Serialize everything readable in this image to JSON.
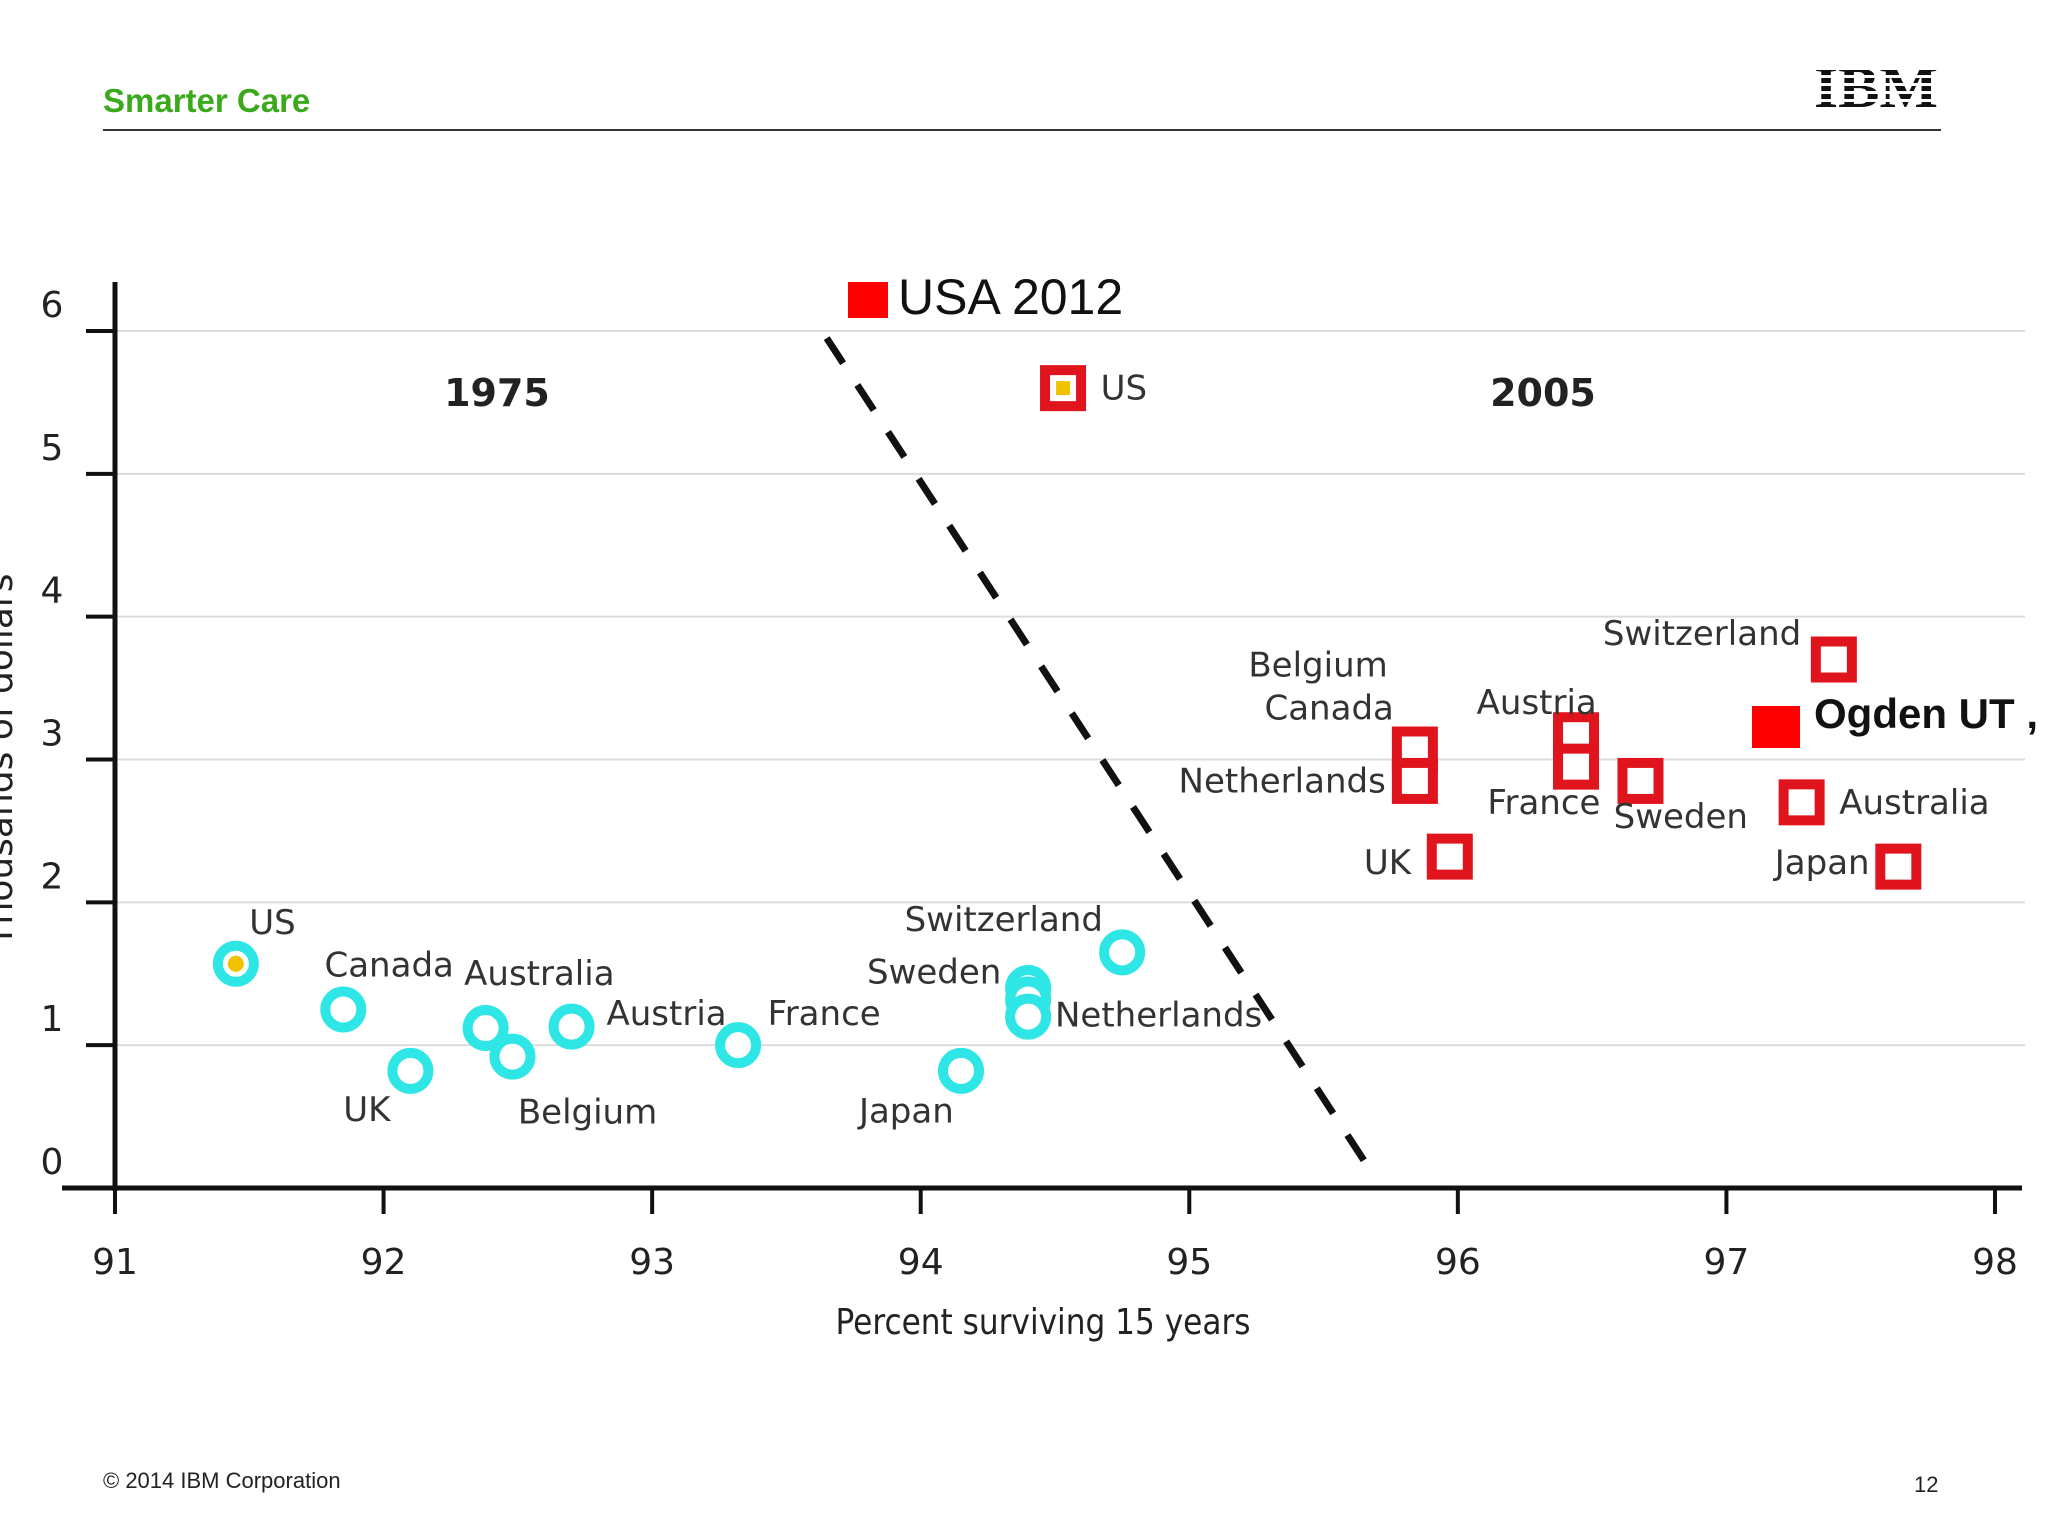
{
  "header": {
    "title": "Smarter Care",
    "logo_text": "IBM"
  },
  "footer": {
    "copyright": "© 2014 IBM Corporation",
    "page_number": "12"
  },
  "chart_data": {
    "type": "scatter",
    "title": "",
    "xlabel": "Percent surviving 15 years",
    "ylabel": "Thousands of dollars",
    "xlim": [
      91,
      98
    ],
    "ylim": [
      0,
      6
    ],
    "x_ticks": [
      "91",
      "92",
      "93",
      "94",
      "95",
      "96",
      "97",
      "98"
    ],
    "y_ticks": [
      "0",
      "1",
      "2",
      "3",
      "4",
      "5",
      "6"
    ],
    "grid": true,
    "era_labels": {
      "left": "1975",
      "right": "2005"
    },
    "colors": {
      "series_1975": "#2ee6e6",
      "series_2005": "#e0141c",
      "annotation": "#ff0000",
      "us_center": "#f2c200"
    },
    "series": [
      {
        "name": "1975",
        "marker": "ring",
        "points": [
          {
            "label": "US",
            "x": 91.45,
            "y": 1.57
          },
          {
            "label": "Canada",
            "x": 91.85,
            "y": 1.25
          },
          {
            "label": "UK",
            "x": 92.1,
            "y": 0.82
          },
          {
            "label": "",
            "x": 92.38,
            "y": 1.12
          },
          {
            "label": "Australia",
            "x": 92.48,
            "y": 0.92
          },
          {
            "label": "Belgium",
            "x": 92.7,
            "y": 1.13
          },
          {
            "label": "Austria",
            "x": 93.32,
            "y": 1.0
          },
          {
            "label": "France",
            "x": 94.15,
            "y": 0.82
          },
          {
            "label": "Japan",
            "x": 94.4,
            "y": 1.4
          },
          {
            "label": "Sweden",
            "x": 94.4,
            "y": 1.32
          },
          {
            "label": "Netherlands",
            "x": 94.4,
            "y": 1.2
          },
          {
            "label": "Switzerland",
            "x": 94.75,
            "y": 1.65
          }
        ],
        "labels": [
          {
            "text": "US",
            "x": 91.5,
            "y": 1.78
          },
          {
            "text": "Canada",
            "x": 91.78,
            "y": 1.48
          },
          {
            "text": "Australia",
            "x": 92.3,
            "y": 1.42
          },
          {
            "text": "Austria",
            "x": 92.83,
            "y": 1.14
          },
          {
            "text": "France",
            "x": 93.43,
            "y": 1.14
          },
          {
            "text": "UK",
            "x": 91.85,
            "y": 0.47
          },
          {
            "text": "Belgium",
            "x": 92.5,
            "y": 0.45
          },
          {
            "text": "Switzerland",
            "x": 93.94,
            "y": 1.8
          },
          {
            "text": "Sweden",
            "x": 93.8,
            "y": 1.43
          },
          {
            "text": "Netherlands",
            "x": 94.5,
            "y": 1.13
          },
          {
            "text": "Japan",
            "x": 93.77,
            "y": 0.46
          }
        ]
      },
      {
        "name": "2005",
        "marker": "square",
        "points": [
          {
            "label": "US",
            "x": 94.53,
            "y": 5.6
          },
          {
            "label": "Belgium",
            "x": 95.84,
            "y": 3.07
          },
          {
            "label": "Canada",
            "x": 95.84,
            "y": 2.85
          },
          {
            "label": "UK",
            "x": 95.97,
            "y": 2.32
          },
          {
            "label": "Austria",
            "x": 96.44,
            "y": 3.17
          },
          {
            "label": "France",
            "x": 96.44,
            "y": 2.95
          },
          {
            "label": "Sweden",
            "x": 96.68,
            "y": 2.85
          },
          {
            "label": "Switzerland",
            "x": 97.4,
            "y": 3.7
          },
          {
            "label": "Australia",
            "x": 97.28,
            "y": 2.7
          },
          {
            "label": "Japan",
            "x": 97.64,
            "y": 2.25
          }
        ],
        "labels": [
          {
            "text": "US",
            "x": 94.67,
            "y": 5.52
          },
          {
            "text": "Belgium",
            "x": 95.22,
            "y": 3.58
          },
          {
            "text": "Canada",
            "x": 95.28,
            "y": 3.28
          },
          {
            "text": "Netherlands",
            "x": 94.96,
            "y": 2.77
          },
          {
            "text": "UK",
            "x": 95.65,
            "y": 2.2
          },
          {
            "text": "Austria",
            "x": 96.07,
            "y": 3.32
          },
          {
            "text": "France",
            "x": 96.11,
            "y": 2.62
          },
          {
            "text": "Sweden",
            "x": 96.58,
            "y": 2.52
          },
          {
            "text": "Switzerland",
            "x": 96.54,
            "y": 3.8
          },
          {
            "text": "Australia",
            "x": 97.42,
            "y": 2.62
          },
          {
            "text": "Japan",
            "x": 97.18,
            "y": 2.2
          }
        ]
      }
    ],
    "divider": {
      "from": [
        93.65,
        5.95
      ],
      "to": [
        95.7,
        0.05
      ]
    },
    "annotations": [
      {
        "text": "USA 2012",
        "x": 93.8,
        "y": 6.25
      },
      {
        "text": "Ogden UT ,",
        "x": 97.15,
        "y": 3.2
      }
    ]
  }
}
